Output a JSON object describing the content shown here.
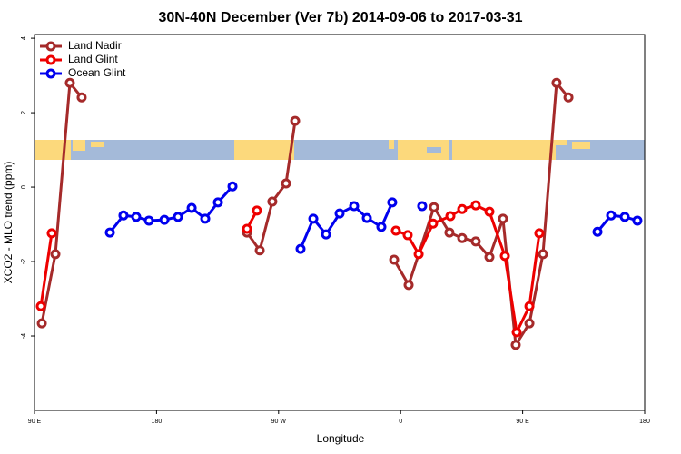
{
  "chart_data": {
    "type": "line",
    "title": "30N-40N December (Ver 7b)   2014-09-06 to 2017-03-31",
    "x_label": "Longitude",
    "y_label": "XCO2 - MLO trend (ppm)",
    "xlim": [
      90,
      540
    ],
    "xticks": [
      {
        "value": 90,
        "label": "90 E"
      },
      {
        "value": 180,
        "label": "180"
      },
      {
        "value": 270,
        "label": "90 W"
      },
      {
        "value": 360,
        "label": "0"
      },
      {
        "value": 450,
        "label": "90 E"
      },
      {
        "value": 540,
        "label": "180"
      }
    ],
    "ylim": [
      -6,
      4.1
    ],
    "yticks": [
      4,
      2,
      0,
      -2,
      -4
    ],
    "legend": "top-left",
    "series": [
      {
        "name": "Land Nadir",
        "color": "#a52a2a",
        "x": [
          95.4,
          105.4,
          116.1,
          124.8,
          null,
          246.7,
          256.1,
          265.4,
          275.5,
          282.2,
          null,
          355.2,
          365.9,
          384.6,
          396,
          405.4,
          415.4,
          425.5,
          435.5,
          444.9,
          455,
          465,
          475,
          483.8
        ],
        "values": [
          -3.66,
          -1.8,
          2.8,
          2.41,
          null,
          -1.22,
          -1.7,
          -0.39,
          0.1,
          1.78,
          null,
          -1.95,
          -2.63,
          -0.54,
          -1.22,
          -1.37,
          -1.46,
          -1.88,
          -0.85,
          -4.24,
          -3.66,
          -1.8,
          2.8,
          2.41
        ]
      },
      {
        "name": "Land Glint",
        "color": "#ee0000",
        "x": [
          94.7,
          102.7,
          null,
          246.7,
          254,
          null,
          356.5,
          365.2,
          373.3,
          383.9,
          396.7,
          405.4,
          415.4,
          425.5,
          436.9,
          445.6,
          455,
          462.3
        ],
        "values": [
          -3.2,
          -1.24,
          null,
          -1.12,
          -0.63,
          null,
          -1.17,
          -1.29,
          -1.8,
          -0.98,
          -0.78,
          -0.59,
          -0.49,
          -0.66,
          -1.85,
          -3.9,
          -3.2,
          -1.24
        ]
      },
      {
        "name": "Ocean Glint",
        "color": "#0000ee",
        "x": [
          145.6,
          155.6,
          165,
          174.4,
          185.8,
          195.8,
          205.9,
          215.9,
          225.3,
          236,
          null,
          286.2,
          295.6,
          305,
          315,
          325.7,
          335.1,
          345.8,
          353.8,
          null,
          375.9,
          null,
          505.2,
          515.2,
          525.3,
          534.6
        ],
        "values": [
          -1.22,
          -0.76,
          -0.8,
          -0.9,
          -0.88,
          -0.8,
          -0.56,
          -0.85,
          -0.41,
          0.02,
          null,
          -1.66,
          -0.85,
          -1.27,
          -0.71,
          -0.51,
          -0.83,
          -1.07,
          -0.41,
          null,
          -0.51,
          null,
          -1.2,
          -0.76,
          -0.8,
          -0.9
        ]
      }
    ]
  }
}
